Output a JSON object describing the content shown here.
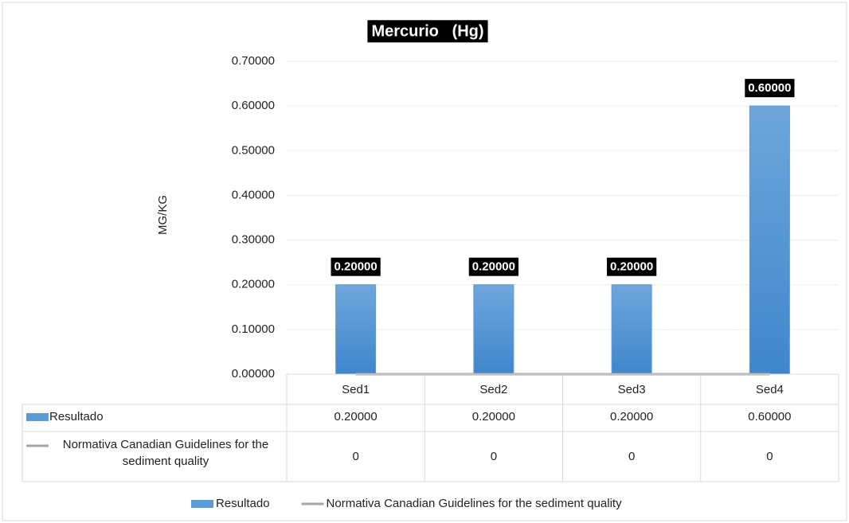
{
  "chart_data": {
    "type": "bar",
    "title": "Mercurio   (Hg)",
    "y_label": "MG/KG",
    "categories": [
      "Sed1",
      "Sed2",
      "Sed3",
      "Sed4"
    ],
    "series": [
      {
        "name": "Resultado",
        "color": "#5b9bd5",
        "values": [
          0.2,
          0.2,
          0.2,
          0.6
        ],
        "value_labels": [
          "0.20000",
          "0.20000",
          "0.20000",
          "0.60000"
        ]
      },
      {
        "name": "Normativa Canadian Guidelines for the sediment quality",
        "color": "#a5a5a5",
        "type": "line",
        "values": [
          0,
          0,
          0,
          0
        ]
      }
    ],
    "ylim": [
      0,
      0.7
    ],
    "yticks": [
      {
        "value": 0,
        "label": "0.00000"
      },
      {
        "value": 0.1,
        "label": "0.10000"
      },
      {
        "value": 0.2,
        "label": "0.20000"
      },
      {
        "value": 0.3,
        "label": "0.30000"
      },
      {
        "value": 0.4,
        "label": "0.40000"
      },
      {
        "value": 0.5,
        "label": "0.50000"
      },
      {
        "value": 0.6,
        "label": "0.60000"
      },
      {
        "value": 0.7,
        "label": "0.70000"
      }
    ],
    "grid": true,
    "legend": "bottom",
    "data_table": true
  }
}
